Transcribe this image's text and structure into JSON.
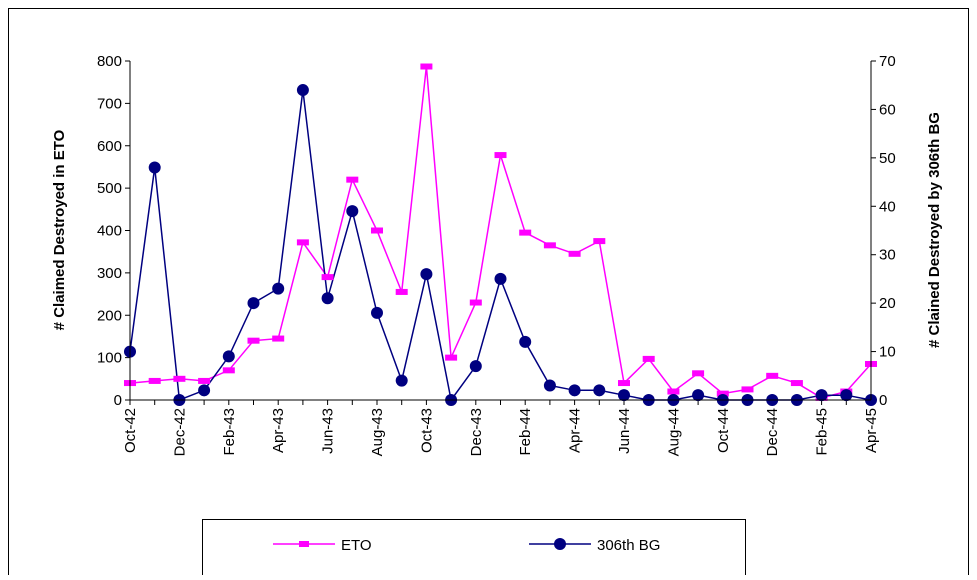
{
  "chart_data": {
    "type": "line",
    "title": "",
    "xlabel": "",
    "ylabel": "# Claimed Destroyed in ETO",
    "y2label": "# Clained Destroyed by 306th BG",
    "ylim": [
      0,
      800
    ],
    "y2lim": [
      0,
      70
    ],
    "yticks": [
      "0",
      "100",
      "200",
      "300",
      "400",
      "500",
      "600",
      "700",
      "800"
    ],
    "y2ticks": [
      "0",
      "10",
      "20",
      "30",
      "40",
      "50",
      "60",
      "70"
    ],
    "x": [
      "Oct-42",
      "Nov-42",
      "Dec-42",
      "Jan-43",
      "Feb-43",
      "Mar-43",
      "Apr-43",
      "May-43",
      "Jun-43",
      "Jul-43",
      "Aug-43",
      "Sep-43",
      "Oct-43",
      "Nov-43",
      "Dec-43",
      "Jan-44",
      "Feb-44",
      "Mar-44",
      "Apr-44",
      "May-44",
      "Jun-44",
      "Jul-44",
      "Aug-44",
      "Sep-44",
      "Oct-44",
      "Nov-44",
      "Dec-44",
      "Jan-45",
      "Feb-45",
      "Mar-45",
      "Apr-45"
    ],
    "xtick_labels": [
      "Oct-42",
      "Dec-42",
      "Feb-43",
      "Apr-43",
      "Jun-43",
      "Aug-43",
      "Oct-43",
      "Dec-43",
      "Feb-44",
      "Apr-44",
      "Jun-44",
      "Aug-44",
      "Oct-44",
      "Dec-44",
      "Feb-45",
      "Apr-45"
    ],
    "grid": false,
    "legend_position": "bottom",
    "series": [
      {
        "name": "ETO",
        "axis": "left",
        "color": "#ff00ff",
        "marker": "square",
        "values": [
          40,
          45,
          50,
          45,
          70,
          140,
          145,
          372,
          290,
          520,
          400,
          255,
          787,
          100,
          230,
          578,
          395,
          365,
          345,
          375,
          40,
          97,
          20,
          63,
          15,
          25,
          57,
          40,
          5,
          20,
          85
        ]
      },
      {
        "name": "306th BG",
        "axis": "right",
        "color": "#000080",
        "marker": "circle",
        "values": [
          10,
          48,
          0,
          2,
          9,
          20,
          23,
          64,
          21,
          39,
          18,
          4,
          26,
          0,
          7,
          25,
          12,
          3,
          2,
          2,
          1,
          0,
          0,
          1,
          0,
          0,
          0,
          0,
          1,
          1,
          0
        ]
      }
    ]
  }
}
